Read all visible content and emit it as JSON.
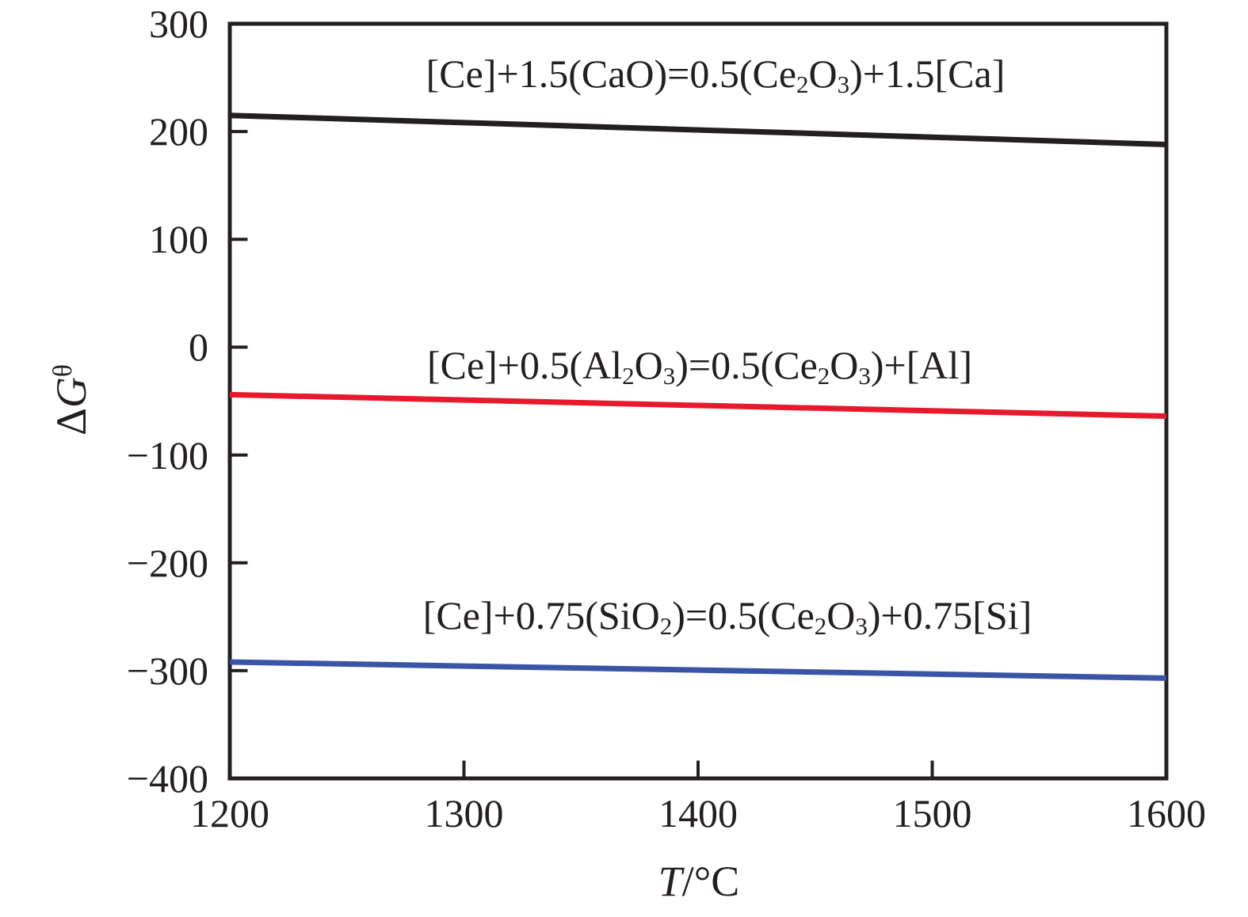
{
  "figure": {
    "background": "#ffffff",
    "text_color": "#231f20"
  },
  "chart_data": {
    "type": "line",
    "title": "",
    "xlabel": "T/°C",
    "ylabel": "ΔG^θ",
    "xlabel_parts": [
      {
        "t": "T",
        "italic": true
      },
      {
        "t": "/°C"
      }
    ],
    "ylabel_parts": [
      {
        "t": "Δ"
      },
      {
        "t": "G",
        "italic": true
      },
      {
        "t": "θ",
        "sup": true
      }
    ],
    "xlim": [
      1200,
      1600
    ],
    "ylim": [
      -400,
      300
    ],
    "x_ticks": [
      1200,
      1300,
      1400,
      1500,
      1600
    ],
    "x_tick_labels": [
      "1200",
      "1300",
      "1400",
      "1500",
      "1600"
    ],
    "y_ticks": [
      300,
      200,
      100,
      0,
      -100,
      -200,
      -300,
      -400
    ],
    "y_tick_labels": [
      "300",
      "200",
      "100",
      "0",
      "−100",
      "−200",
      "−300",
      "−400"
    ],
    "grid": false,
    "frame": true,
    "frame_color": "#231f20",
    "label_text_color": "#231f20",
    "legend": "inline-labels-above-lines",
    "x": [
      1200,
      1300,
      1400,
      1500,
      1600
    ],
    "series": [
      {
        "id": "cao",
        "name": "[Ce]+1.5(CaO)=0.5(Ce2O3)+1.5[Ca]",
        "label_parts": [
          {
            "t": "[Ce]+1.5(CaO)=0.5(Ce"
          },
          {
            "t": "2",
            "sub": true
          },
          {
            "t": "O"
          },
          {
            "t": "3",
            "sub": true
          },
          {
            "t": ")+1.5[Ca]"
          }
        ],
        "color": "#231f20",
        "values": [
          215,
          208.3,
          201.5,
          194.8,
          188
        ]
      },
      {
        "id": "al2o3",
        "name": "[Ce]+0.5(Al2O3)=0.5(Ce2O3)+[Al]",
        "label_parts": [
          {
            "t": "[Ce]+0.5(Al"
          },
          {
            "t": "2",
            "sub": true
          },
          {
            "t": "O"
          },
          {
            "t": "3",
            "sub": true
          },
          {
            "t": ")=0.5(Ce"
          },
          {
            "t": "2",
            "sub": true
          },
          {
            "t": "O"
          },
          {
            "t": "3",
            "sub": true
          },
          {
            "t": ")+[Al]"
          }
        ],
        "color": "#e8192d",
        "values": [
          -44,
          -49,
          -54,
          -59,
          -64
        ]
      },
      {
        "id": "sio2",
        "name": "[Ce]+0.75(SiO2)=0.5(Ce2O3)+0.75[Si]",
        "label_parts": [
          {
            "t": "[Ce]+0.75(SiO"
          },
          {
            "t": "2",
            "sub": true
          },
          {
            "t": ")=0.5(Ce"
          },
          {
            "t": "2",
            "sub": true
          },
          {
            "t": "O"
          },
          {
            "t": "3",
            "sub": true
          },
          {
            "t": ")+0.75[Si]"
          }
        ],
        "color": "#3a55a5",
        "values": [
          -292,
          -295.8,
          -299.5,
          -303.2,
          -307
        ]
      }
    ]
  }
}
